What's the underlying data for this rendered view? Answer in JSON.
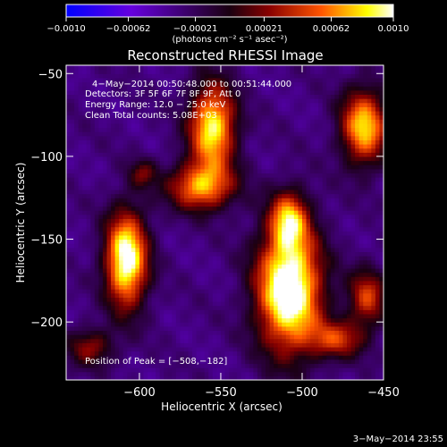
{
  "chart_data": {
    "type": "heatmap",
    "title": "Reconstructed RHESSI Image",
    "xlabel": "Heliocentric X (arcsec)",
    "ylabel": "Heliocentric Y (arcsec)",
    "xlim": [
      -645,
      -450
    ],
    "ylim": [
      -235,
      -45
    ],
    "x_ticks": [
      {
        "value": -600,
        "label": "−600"
      },
      {
        "value": -550,
        "label": "−550"
      },
      {
        "value": -500,
        "label": "−500"
      },
      {
        "value": -450,
        "label": "−450"
      }
    ],
    "y_ticks": [
      {
        "value": -50,
        "label": "−50"
      },
      {
        "value": -100,
        "label": "−100"
      },
      {
        "value": -150,
        "label": "−150"
      },
      {
        "value": -200,
        "label": "−200"
      }
    ],
    "colorbar": {
      "min": -0.001,
      "max": 0.001,
      "unit_label": "(photons cm⁻² s⁻¹ asec⁻²)",
      "ticks": [
        {
          "value": -0.001,
          "label": "−0.0010"
        },
        {
          "value": -0.00062,
          "label": "−0.00062"
        },
        {
          "value": -0.00021,
          "label": "−0.00021"
        },
        {
          "value": 0.00021,
          "label": "0.00021"
        },
        {
          "value": 0.00062,
          "label": "0.00062"
        },
        {
          "value": 0.001,
          "label": "0.0010"
        }
      ],
      "colors": [
        "#0000ff",
        "#6600dd",
        "#1a0010",
        "#880000",
        "#ff5500",
        "#ffff00",
        "#ffffff"
      ]
    },
    "annotations": {
      "time": "4−May−2014 00:50:48.000 to 00:51:44.000",
      "detectors": "Detectors: 3F 5F 6F 7F 8F 9F, Att 0",
      "energy": "Energy Range: 12.0 − 25.0 keV",
      "clean": "Clean     Total counts: 5.08E+03",
      "peak": "Position of Peak = [−508,−182]"
    },
    "peak_position": [
      -508,
      -182
    ],
    "blobs": [
      {
        "x": -608,
        "y": -162,
        "sx": 9,
        "sy": 20,
        "amp": 1.15
      },
      {
        "x": -555,
        "y": -82,
        "sx": 10,
        "sy": 18,
        "amp": 1.0
      },
      {
        "x": -562,
        "y": -118,
        "sx": 14,
        "sy": 10,
        "amp": 0.8
      },
      {
        "x": -508,
        "y": -180,
        "sx": 14,
        "sy": 26,
        "amp": 1.25
      },
      {
        "x": -508,
        "y": -138,
        "sx": 8,
        "sy": 12,
        "amp": 0.7
      },
      {
        "x": -462,
        "y": -82,
        "sx": 10,
        "sy": 16,
        "amp": 0.9
      },
      {
        "x": -460,
        "y": -185,
        "sx": 8,
        "sy": 12,
        "amp": 0.6
      },
      {
        "x": -478,
        "y": -210,
        "sx": 12,
        "sy": 8,
        "amp": 0.55
      },
      {
        "x": -630,
        "y": -215,
        "sx": 10,
        "sy": 8,
        "amp": 0.45
      },
      {
        "x": -598,
        "y": -110,
        "sx": 6,
        "sy": 6,
        "amp": 0.35
      }
    ],
    "footer": "3−May−2014 23:55"
  }
}
